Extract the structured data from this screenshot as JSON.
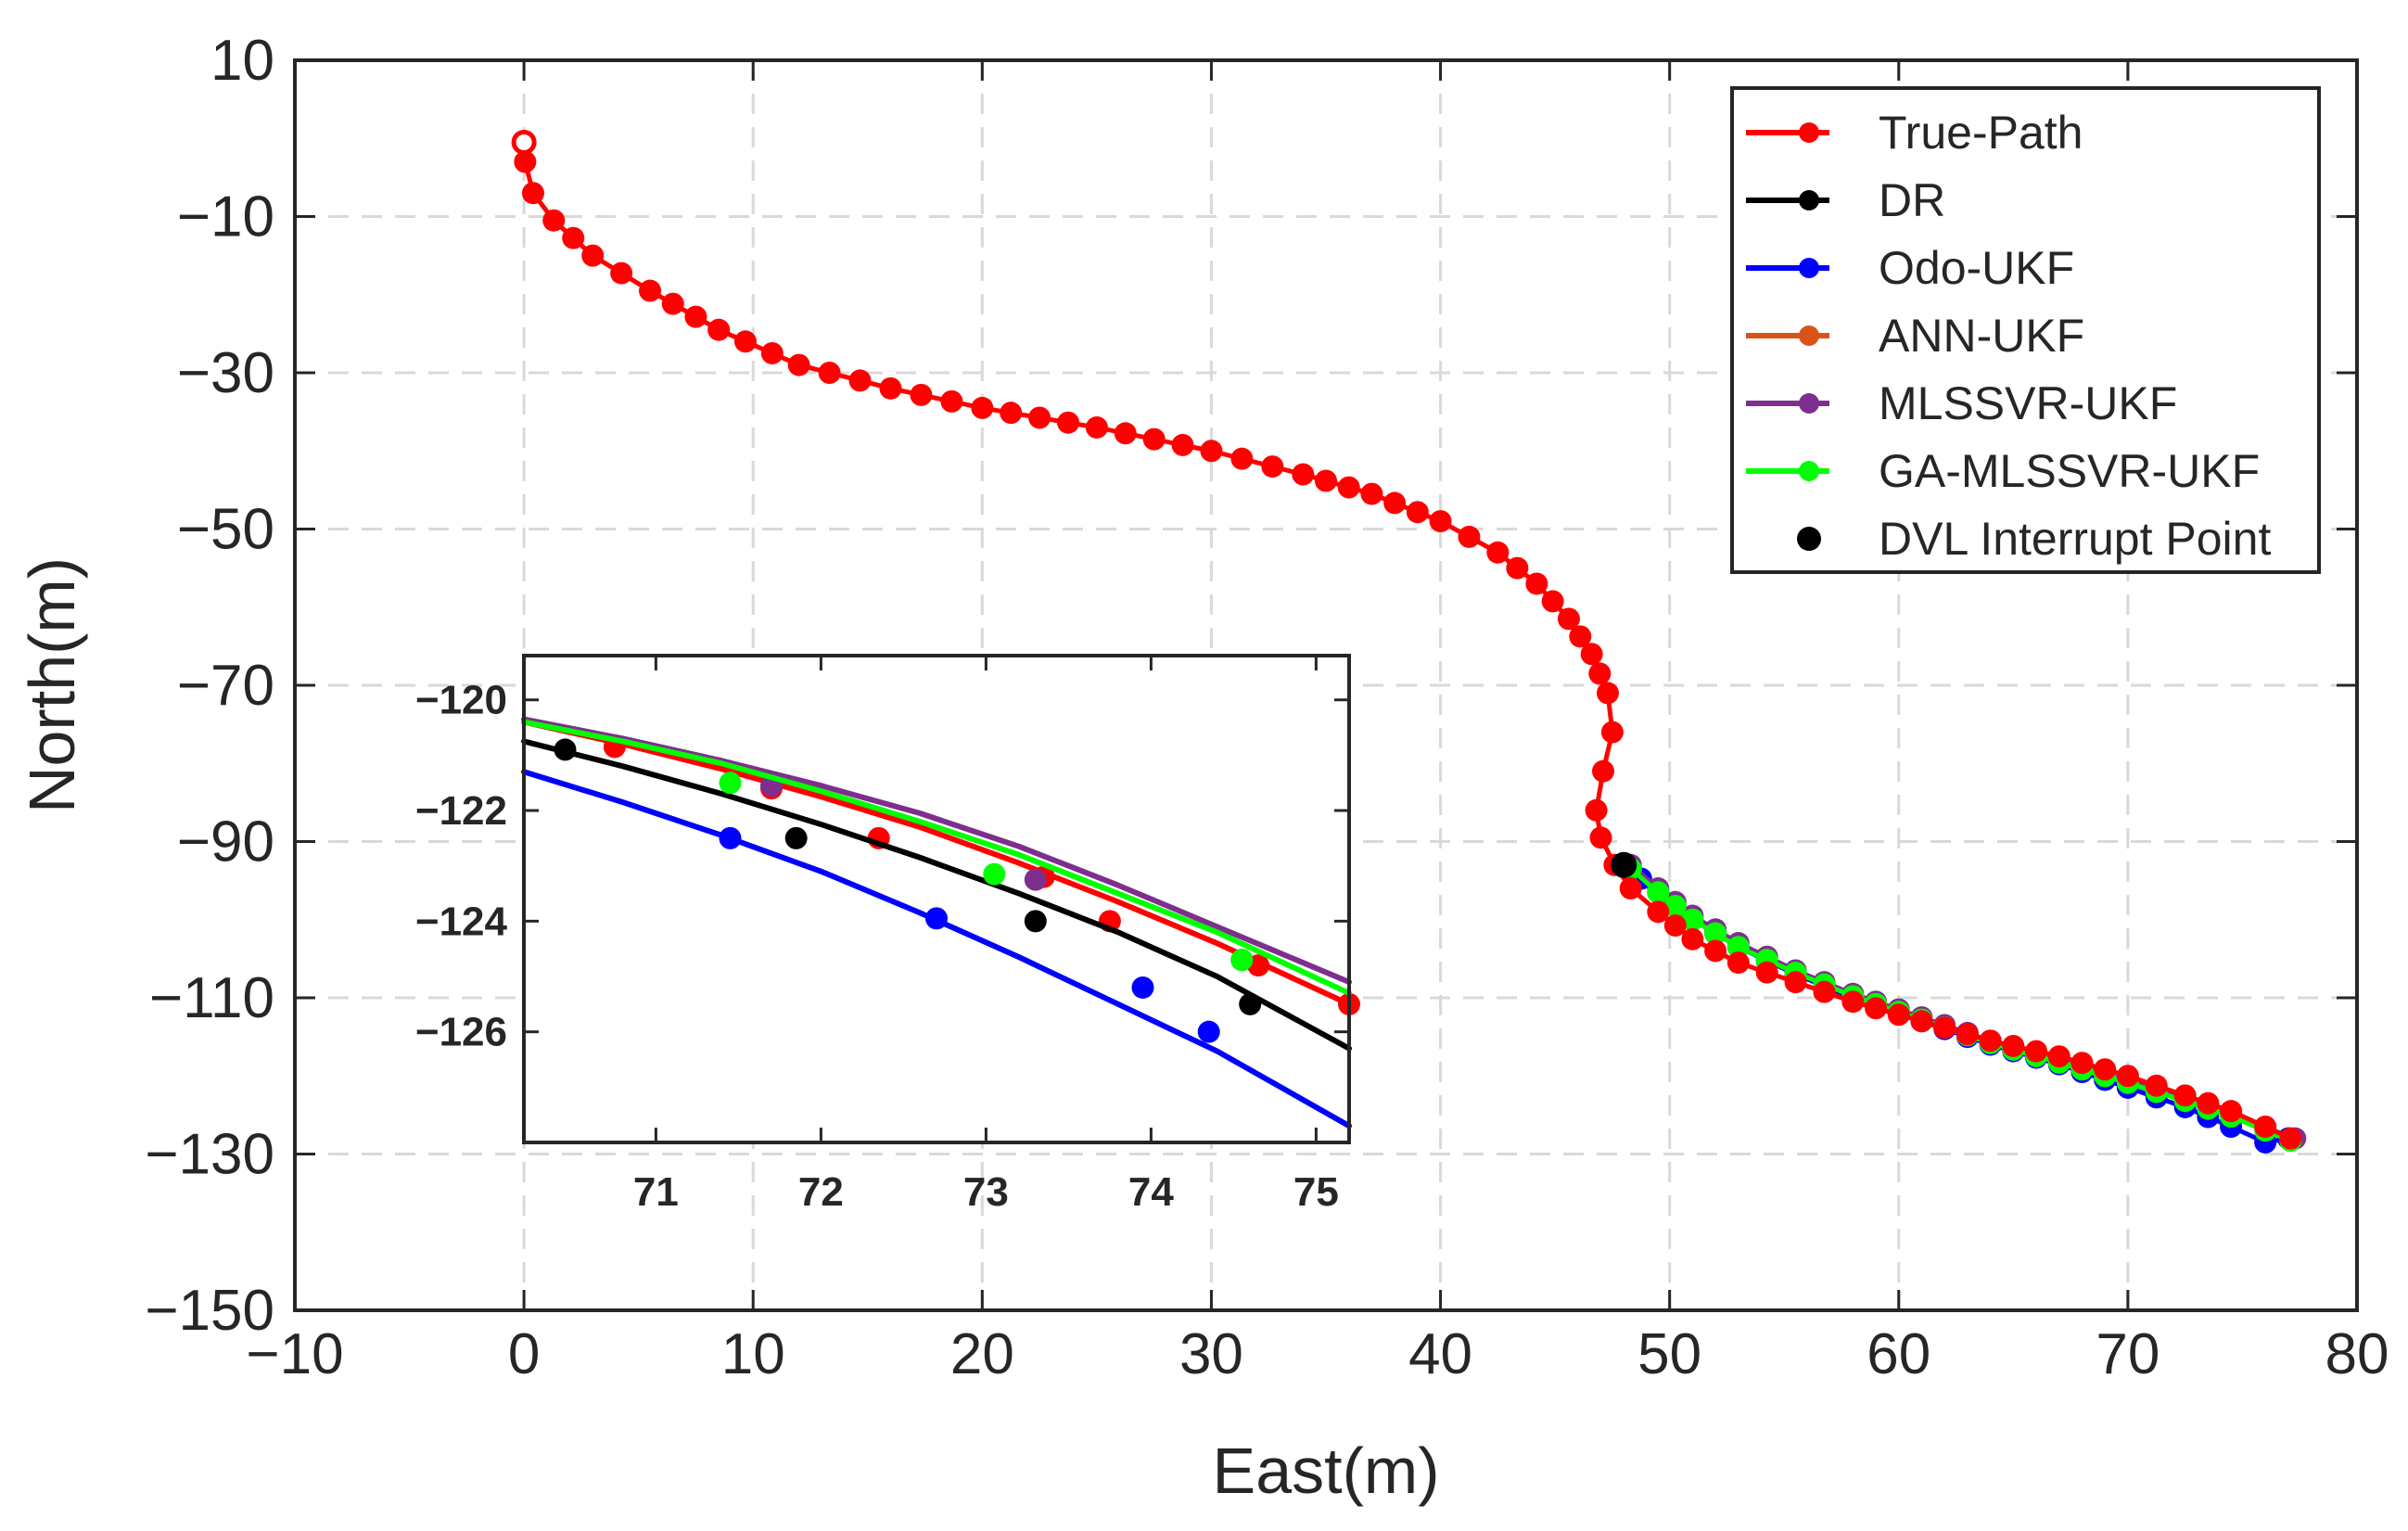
{
  "chart_data": [
    {
      "type": "line",
      "xlabel": "East(m)",
      "ylabel": "North(m)",
      "xlim": [
        -10,
        80
      ],
      "ylim": [
        -150,
        10
      ],
      "xticks": [
        -10,
        0,
        10,
        20,
        30,
        40,
        50,
        60,
        70,
        80
      ],
      "yticks": [
        10,
        -10,
        -30,
        -50,
        -70,
        -90,
        -110,
        -130,
        -150
      ],
      "xtick_labels": [
        "−10",
        "0",
        "10",
        "20",
        "30",
        "40",
        "50",
        "60",
        "70",
        "80"
      ],
      "ytick_labels": [
        "10",
        "−10",
        "−30",
        "−50",
        "−70",
        "−90",
        "−110",
        "−130",
        "−150"
      ],
      "grid": true,
      "legend_position": "top-right",
      "series": [
        {
          "name": "True-Path",
          "color": "#ff0000",
          "x": [
            0,
            0.05,
            0.4,
            1.3,
            3,
            5.5,
            8.5,
            12,
            16,
            20,
            25,
            30,
            34,
            37,
            40,
            42.5,
            44.2,
            45.6,
            46.6,
            47.3,
            47.5,
            47.1,
            46.8,
            47.0,
            47.6,
            48.3,
            49.5,
            51,
            53,
            55.5,
            58,
            61,
            64,
            67,
            70,
            72.5,
            74.5,
            76,
            77.1
          ],
          "y": [
            -0.5,
            -3,
            -7,
            -10.5,
            -15,
            -19.5,
            -24.5,
            -29,
            -32,
            -34.5,
            -37,
            -40,
            -43,
            -45.5,
            -49,
            -53,
            -57,
            -61.5,
            -66,
            -71,
            -76,
            -81,
            -86,
            -89.5,
            -93,
            -96,
            -99,
            -102.5,
            -105.5,
            -108,
            -110.5,
            -113,
            -115.5,
            -117.5,
            -120,
            -122.5,
            -124.5,
            -126.5,
            -128
          ]
        },
        {
          "name": "DR",
          "color": "#000000",
          "x": [],
          "y": []
        },
        {
          "name": "Odo-UKF",
          "color": "#0000ff",
          "x": [
            48,
            49.5,
            51,
            53,
            55.5,
            58,
            61,
            64,
            67,
            70,
            72.5,
            74.5,
            76,
            77
          ],
          "y": [
            -93,
            -96.5,
            -100,
            -103.5,
            -107,
            -110,
            -113,
            -116,
            -118.5,
            -121.5,
            -124,
            -126.5,
            -128.5,
            -128
          ]
        },
        {
          "name": "ANN-UKF",
          "color": "#d95319",
          "x": [],
          "y": []
        },
        {
          "name": "MLSSVR-UKF",
          "color": "#7e2f8e",
          "x": [
            48.3,
            49.5,
            51,
            53,
            55.5,
            58,
            61,
            64,
            67,
            70,
            72.5,
            74.5,
            76,
            77.3
          ],
          "y": [
            -93,
            -96,
            -99.5,
            -103,
            -106.5,
            -109.5,
            -112.5,
            -115.5,
            -118,
            -120.5,
            -122.8,
            -124.8,
            -126.6,
            -128
          ]
        },
        {
          "name": "GA-MLSSVR-UKF",
          "color": "#00ff00",
          "x": [
            48.3,
            49.5,
            51,
            53,
            55.5,
            58,
            61,
            64,
            67,
            70,
            72.5,
            74.5,
            76,
            77.1
          ],
          "y": [
            -93.5,
            -96.5,
            -100,
            -103.5,
            -106.8,
            -109.8,
            -112.8,
            -115.8,
            -118.3,
            -120.9,
            -123.2,
            -125.2,
            -127,
            -128.3
          ]
        },
        {
          "name": "DVL Interrupt Point",
          "color": "#000000",
          "x": [
            48
          ],
          "y": [
            -93
          ]
        }
      ]
    },
    {
      "type": "line",
      "role": "inset",
      "xlim": [
        70.2,
        75.2
      ],
      "ylim": [
        -128,
        -119.2
      ],
      "xticks": [
        71,
        72,
        73,
        74,
        75
      ],
      "yticks": [
        -120,
        -122,
        -124,
        -126
      ],
      "xtick_labels": [
        "71",
        "72",
        "73",
        "74",
        "75"
      ],
      "ytick_labels": [
        "−120",
        "−122",
        "−124",
        "−126"
      ],
      "series": [
        {
          "name": "True-Path",
          "color": "#ff0000",
          "x": [
            70.2,
            70.8,
            71.4,
            72.0,
            72.6,
            73.2,
            73.8,
            74.4,
            75.2
          ],
          "y": [
            -120.4,
            -120.8,
            -121.25,
            -121.75,
            -122.3,
            -122.95,
            -123.65,
            -124.4,
            -125.5
          ],
          "markers_x": [
            70.75,
            71.7,
            72.35,
            73.35,
            73.75,
            74.65,
            75.2
          ],
          "markers_y": [
            -120.85,
            -121.6,
            -122.5,
            -123.2,
            -124.0,
            -124.8,
            -125.5
          ]
        },
        {
          "name": "DR",
          "color": "#000000",
          "x": [
            70.2,
            70.8,
            71.4,
            72.0,
            72.6,
            73.2,
            73.8,
            74.4,
            75.2
          ],
          "y": [
            -120.75,
            -121.2,
            -121.7,
            -122.25,
            -122.85,
            -123.5,
            -124.2,
            -125.0,
            -126.3
          ],
          "markers_x": [
            70.45,
            71.85,
            73.3,
            74.6
          ],
          "markers_y": [
            -120.9,
            -122.5,
            -124.0,
            -125.5
          ]
        },
        {
          "name": "Odo-UKF",
          "color": "#0000ff",
          "x": [
            70.2,
            70.8,
            71.4,
            72.0,
            72.6,
            73.2,
            73.8,
            74.4,
            75.2
          ],
          "y": [
            -121.3,
            -121.85,
            -122.45,
            -123.1,
            -123.85,
            -124.65,
            -125.5,
            -126.35,
            -127.7
          ],
          "markers_x": [
            71.45,
            72.7,
            73.95,
            74.35
          ],
          "markers_y": [
            -122.5,
            -123.95,
            -125.2,
            -126.0
          ]
        },
        {
          "name": "ANN-UKF",
          "color": "#d95319",
          "x": [],
          "y": []
        },
        {
          "name": "MLSSVR-UKF",
          "color": "#7e2f8e",
          "x": [
            70.2,
            70.8,
            71.4,
            72.0,
            72.6,
            73.2,
            73.8,
            74.4,
            75.2
          ],
          "y": [
            -120.35,
            -120.7,
            -121.1,
            -121.55,
            -122.05,
            -122.65,
            -123.35,
            -124.1,
            -125.1
          ],
          "markers_x": [
            71.7,
            73.3,
            74.55
          ],
          "markers_y": [
            -121.55,
            -123.25,
            -124.7
          ]
        },
        {
          "name": "GA-MLSSVR-UKF",
          "color": "#00ff00",
          "x": [
            70.2,
            70.8,
            71.4,
            72.0,
            72.6,
            73.2,
            73.8,
            74.4,
            75.2
          ],
          "y": [
            -120.4,
            -120.75,
            -121.15,
            -121.65,
            -122.2,
            -122.8,
            -123.5,
            -124.2,
            -125.3
          ],
          "markers_x": [
            71.45,
            73.05,
            74.55
          ],
          "markers_y": [
            -121.5,
            -123.15,
            -124.7
          ]
        }
      ]
    }
  ]
}
